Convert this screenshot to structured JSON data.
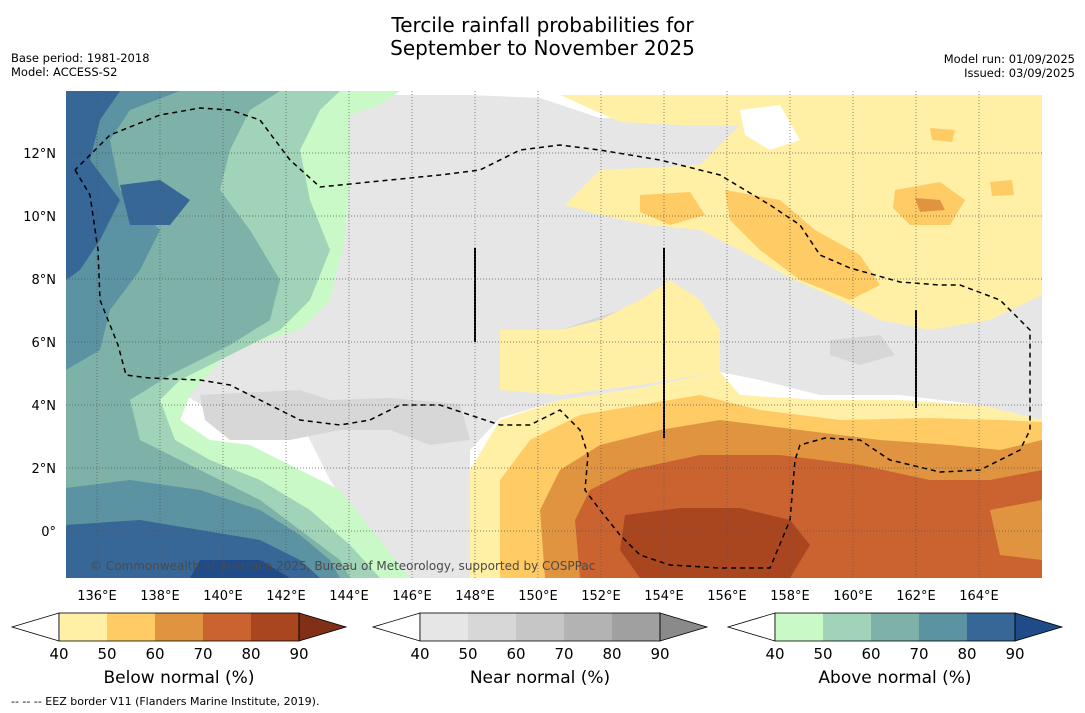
{
  "title": {
    "line1": "Tercile rainfall probabilities for",
    "line2": "September to November 2025"
  },
  "meta": {
    "base_period": "Base period: 1981-2018",
    "model": "Model: ACCESS-S2",
    "model_run": "Model run: 01/09/2025",
    "issued": "Issued: 03/09/2025"
  },
  "axes": {
    "lon_labels": [
      "136°E",
      "138°E",
      "140°E",
      "142°E",
      "144°E",
      "146°E",
      "148°E",
      "150°E",
      "152°E",
      "154°E",
      "156°E",
      "158°E",
      "160°E",
      "162°E",
      "164°E"
    ],
    "lat_labels": [
      "12°N",
      "10°N",
      "8°N",
      "6°N",
      "4°N",
      "2°N",
      "0°"
    ]
  },
  "copyright": "© Commonwealth of Australia 2025, Bureau of Meteorology, supported by COSPPac",
  "colorbars": [
    {
      "label": "Below normal (%)",
      "ticks": [
        "40",
        "50",
        "60",
        "70",
        "80",
        "90"
      ],
      "colors": [
        "#fff0a6",
        "#fecb65",
        "#e1943f",
        "#cb6331",
        "#a9461f",
        "#812f16"
      ]
    },
    {
      "label": "Near normal (%)",
      "ticks": [
        "40",
        "50",
        "60",
        "70",
        "80",
        "90"
      ],
      "colors": [
        "#e6e6e6",
        "#d7d7d7",
        "#c6c6c6",
        "#b3b3b3",
        "#a0a0a0",
        "#8a8a8a"
      ]
    },
    {
      "label": "Above normal (%)",
      "ticks": [
        "40",
        "50",
        "60",
        "70",
        "80",
        "90"
      ],
      "colors": [
        "#c8f9c6",
        "#a0d3b8",
        "#7eb2a9",
        "#5b93a2",
        "#376796",
        "#1f4b88"
      ]
    }
  ],
  "footnote": "--  --  -- EEZ border V11 (Flanders Marine Institute, 2019)."
}
